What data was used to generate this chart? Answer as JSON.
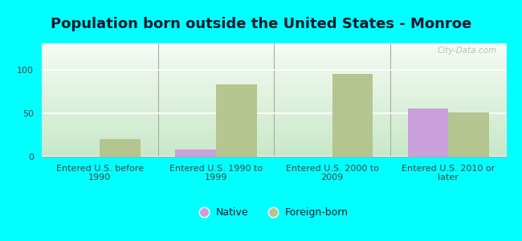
{
  "title": "Population born outside the United States - Monroe",
  "categories": [
    "Entered U.S. before\n1990",
    "Entered U.S. 1990 to\n1999",
    "Entered U.S. 2000 to\n2009",
    "Entered U.S. 2010 or\nlater"
  ],
  "native_values": [
    0,
    8,
    0,
    55
  ],
  "foreign_born_values": [
    20,
    83,
    95,
    51
  ],
  "native_color": "#c9a0dc",
  "foreign_born_color": "#b5c58f",
  "background_color": "#00ffff",
  "plot_bg_top": "#f5fbf5",
  "plot_bg_bottom": "#c8e8c8",
  "ylim": [
    0,
    130
  ],
  "yticks": [
    0,
    50,
    100
  ],
  "bar_width": 0.35,
  "legend_labels": [
    "Native",
    "Foreign-born"
  ],
  "title_fontsize": 13,
  "tick_fontsize": 8,
  "watermark_text": "City-Data.com"
}
